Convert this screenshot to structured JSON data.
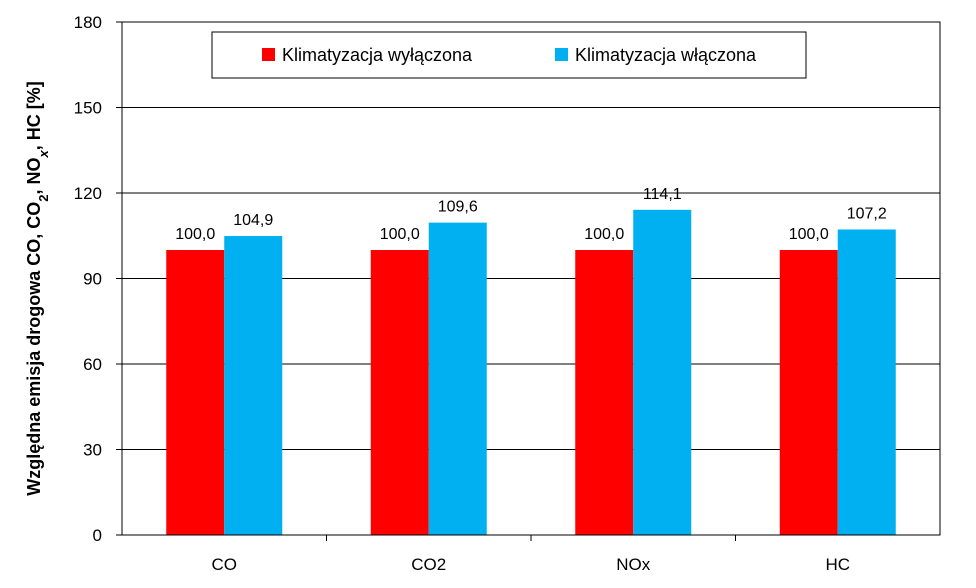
{
  "chart_data": {
    "type": "bar",
    "categories": [
      "CO",
      "CO2",
      "NOx",
      "HC"
    ],
    "series": [
      {
        "name": "Klimatyzacja wyłączona",
        "color": "#ff0000",
        "values": [
          100.0,
          100.0,
          100.0,
          100.0
        ]
      },
      {
        "name": "Klimatyzacja włączona",
        "color": "#00b0f0",
        "values": [
          104.9,
          109.6,
          114.1,
          107.2
        ]
      }
    ],
    "data_labels": [
      [
        "100,0",
        "100,0",
        "100,0",
        "100,0"
      ],
      [
        "104,9",
        "109,6",
        "114,1",
        "107,2"
      ]
    ],
    "ylabel": {
      "parts": [
        {
          "text": "Względna emisja drogowa CO, CO",
          "style": "normal"
        },
        {
          "text": "2",
          "style": "sub"
        },
        {
          "text": ", NO",
          "style": "normal"
        },
        {
          "text": "x",
          "style": "sub-italic"
        },
        {
          "text": ", HC [%]",
          "style": "normal"
        }
      ]
    },
    "xlabel": "",
    "ylim": [
      0,
      180
    ],
    "yticks": [
      0,
      30,
      60,
      90,
      120,
      150,
      180
    ],
    "grid": true,
    "legend": "top-center"
  }
}
